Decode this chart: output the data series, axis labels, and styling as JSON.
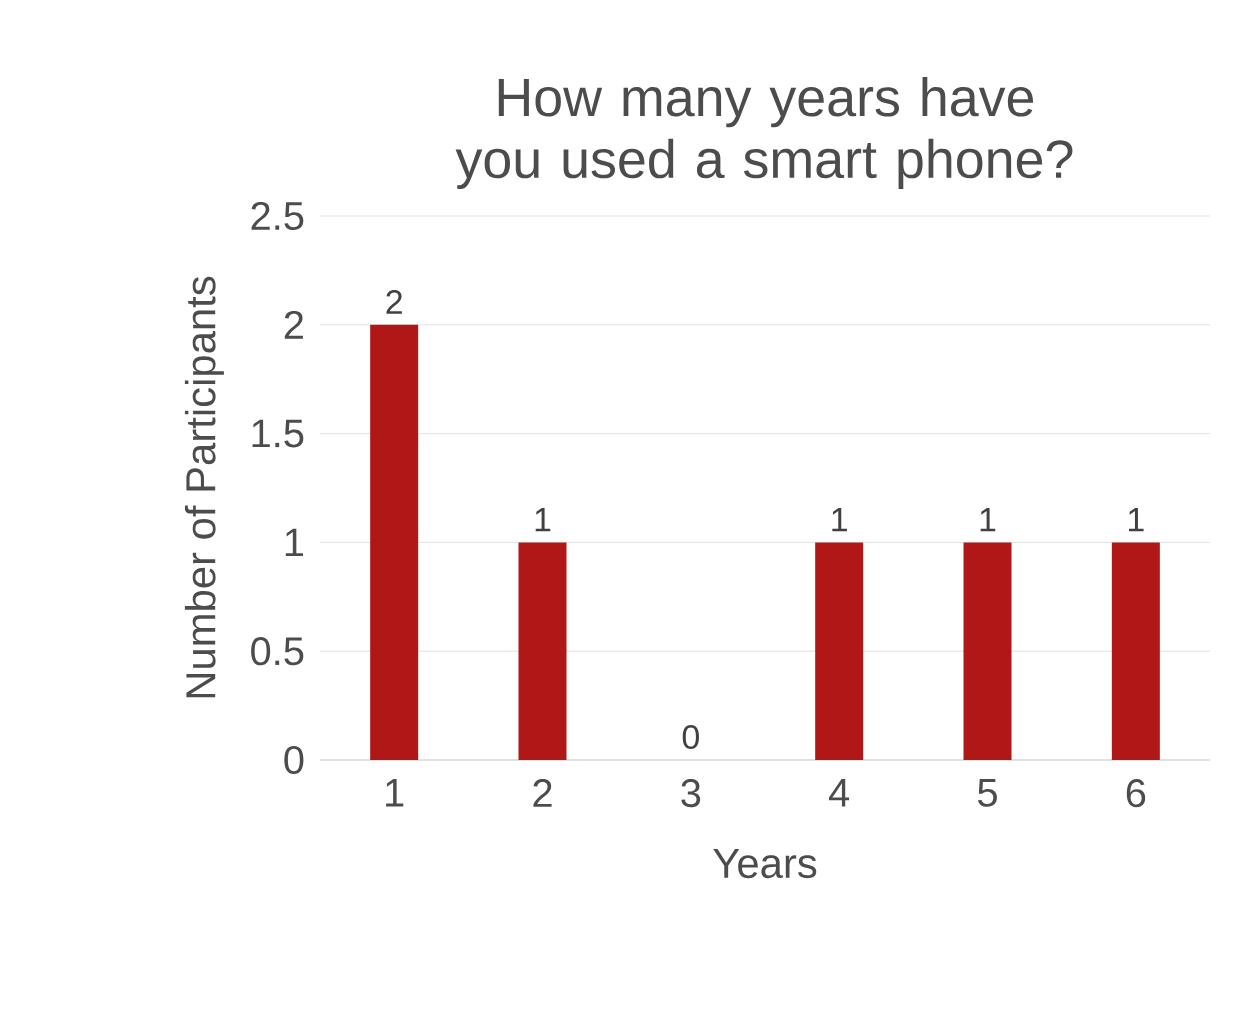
{
  "chart_data": {
    "type": "bar",
    "title": "How many years have you used a smart phone?",
    "xlabel": "Years",
    "ylabel": "Number of Participants",
    "categories": [
      "1",
      "2",
      "3",
      "4",
      "5",
      "6"
    ],
    "values": [
      2,
      1,
      0,
      1,
      1,
      1
    ],
    "color": "#b01818",
    "ylim": [
      0,
      2.5
    ],
    "yticks": [
      0,
      0.5,
      1,
      1.5,
      2,
      2.5
    ],
    "grid": "y",
    "data_labels": true
  }
}
